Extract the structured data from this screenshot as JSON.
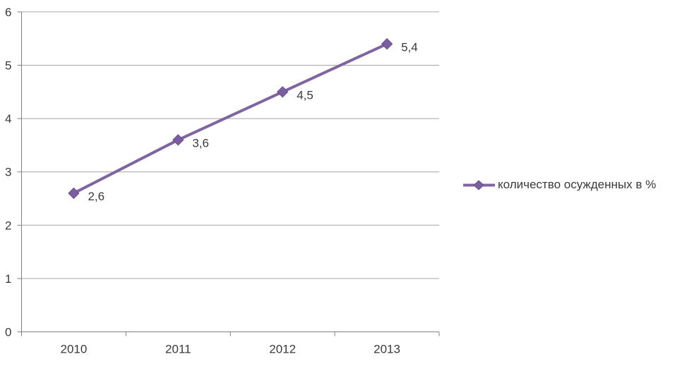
{
  "chart_data": {
    "type": "line",
    "categories": [
      "2010",
      "2011",
      "2012",
      "2013"
    ],
    "series": [
      {
        "name": "количество осужденных в %",
        "values": [
          2.6,
          3.6,
          4.5,
          5.4
        ],
        "data_labels": [
          "2,6",
          "3,6",
          "4,5",
          "5,4"
        ]
      }
    ],
    "ytick_labels": [
      "0",
      "1",
      "2",
      "3",
      "4",
      "5",
      "6"
    ],
    "ylim": [
      0,
      6
    ],
    "grid": true,
    "legend_position": "right",
    "marker": "diamond",
    "colors": {
      "series_line": "#8064A2",
      "marker_fill": "#7B5EA0",
      "marker_stroke": "#6A4F8C",
      "gridline": "#A6A6A6",
      "axis": "#808080",
      "text": "#3A3A3A",
      "background": "#FFFFFF"
    }
  }
}
